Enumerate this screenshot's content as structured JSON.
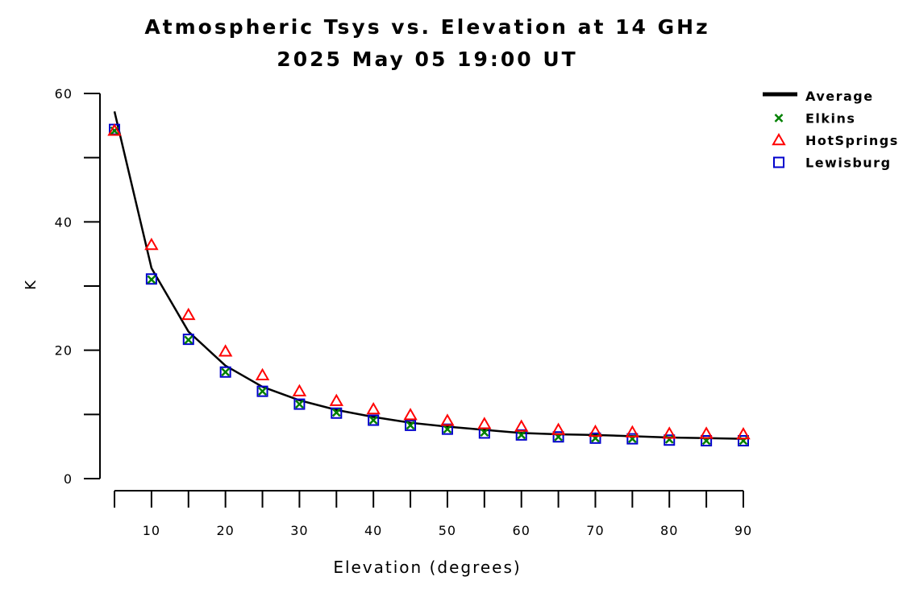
{
  "chart_data": {
    "type": "line",
    "title": "Atmospheric Tsys vs. Elevation at 14 GHz",
    "subtitle": "2025 May 05 19:00 UT",
    "xlabel": "Elevation (degrees)",
    "ylabel": "K",
    "xlim": [
      5,
      90
    ],
    "ylim": [
      0,
      60
    ],
    "xticks": [
      10,
      20,
      30,
      40,
      50,
      60,
      70,
      80,
      90
    ],
    "yticks": [
      0,
      20,
      40,
      60
    ],
    "legend_position": "top-right",
    "x": [
      5,
      10,
      15,
      20,
      25,
      30,
      35,
      40,
      45,
      50,
      55,
      60,
      65,
      70,
      75,
      80,
      85,
      90
    ],
    "series": [
      {
        "name": "Average",
        "style": "line",
        "color": "#000000",
        "values": [
          57.2,
          32.8,
          22.9,
          17.6,
          14.3,
          12.2,
          10.7,
          9.6,
          8.7,
          8.1,
          7.6,
          7.1,
          6.9,
          6.8,
          6.6,
          6.4,
          6.3,
          6.2
        ]
      },
      {
        "name": "Elkins",
        "style": "x-marker",
        "color": "#008000",
        "values": [
          54.2,
          31.0,
          21.6,
          16.6,
          13.6,
          11.6,
          10.3,
          9.1,
          8.3,
          7.7,
          7.2,
          6.8,
          6.5,
          6.3,
          6.2,
          6.1,
          5.9,
          5.9
        ]
      },
      {
        "name": "HotSprings",
        "style": "triangle-marker",
        "color": "#ff0000",
        "values": [
          54.2,
          36.4,
          25.5,
          19.8,
          16.1,
          13.6,
          12.1,
          10.8,
          9.9,
          9.0,
          8.5,
          8.1,
          7.6,
          7.3,
          7.2,
          7.0,
          7.0,
          6.9
        ]
      },
      {
        "name": "Lewisburg",
        "style": "square-marker",
        "color": "#0000cc",
        "values": [
          54.4,
          31.1,
          21.7,
          16.6,
          13.6,
          11.6,
          10.2,
          9.1,
          8.3,
          7.7,
          7.1,
          6.8,
          6.5,
          6.3,
          6.2,
          6.0,
          5.9,
          5.9
        ]
      }
    ]
  }
}
